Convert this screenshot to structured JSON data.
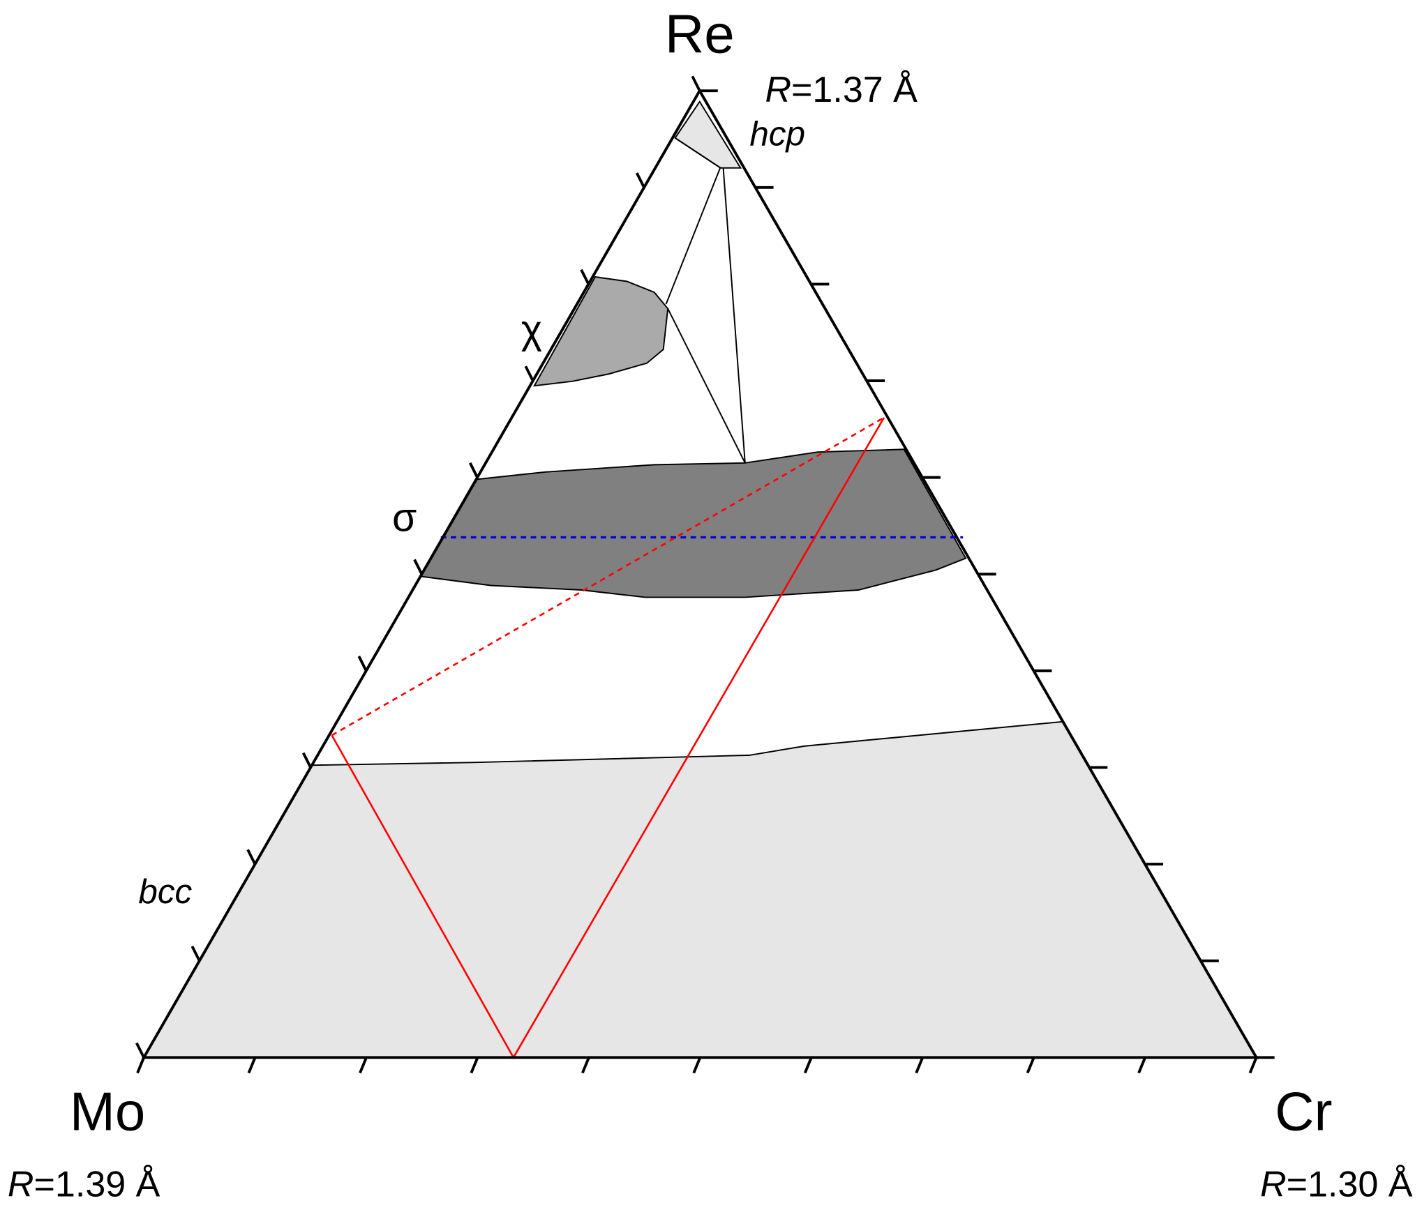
{
  "vertices": [
    {
      "label": "Re",
      "radius_symbol": "R",
      "radius_value": "=1.37 Å"
    },
    {
      "label": "Mo",
      "radius_symbol": "R",
      "radius_value": "=1.39 Å"
    },
    {
      "label": "Cr",
      "radius_symbol": "R",
      "radius_value": "=1.30 Å"
    }
  ],
  "phases": {
    "hcp": "hcp",
    "chi": "χ",
    "sigma": "σ",
    "bcc": "bcc"
  }
}
